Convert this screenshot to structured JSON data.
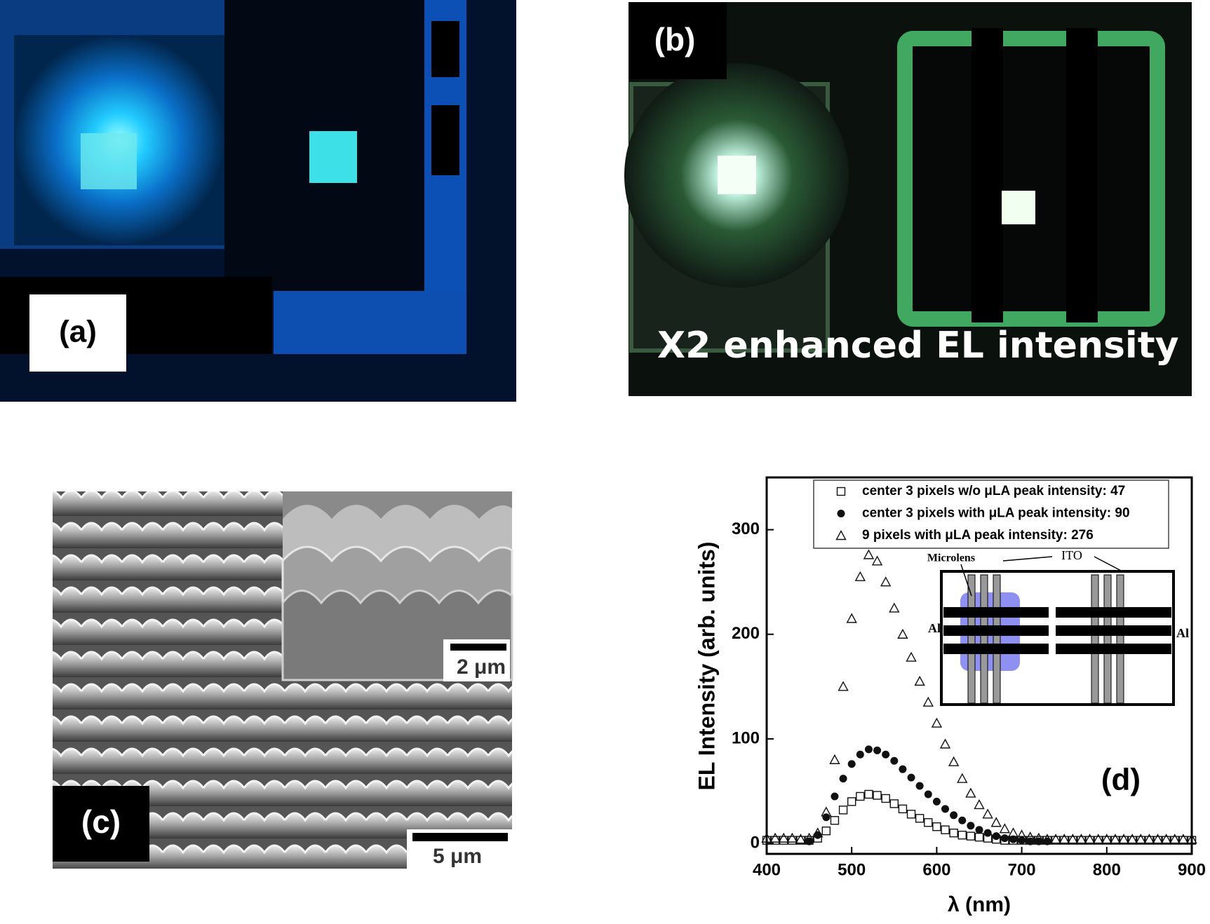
{
  "panels": {
    "a": {
      "label": "(a)"
    },
    "b": {
      "label": "(b)",
      "caption": "X2 enhanced EL intensity"
    },
    "c": {
      "label": "(c)",
      "inset_scale": "2 μm",
      "main_scale": "5 μm"
    }
  },
  "chart_data": {
    "type": "scatter",
    "panel_label": "(d)",
    "x_label": "λ (nm)",
    "y_label": "EL Intensity (arb. units)",
    "x": [
      400,
      410,
      420,
      430,
      440,
      450,
      460,
      470,
      480,
      490,
      500,
      510,
      520,
      530,
      540,
      550,
      560,
      570,
      580,
      590,
      600,
      610,
      620,
      630,
      640,
      650,
      660,
      670,
      680,
      690,
      700,
      710,
      720,
      730,
      740,
      750,
      760,
      770,
      780,
      790,
      800,
      810,
      820,
      830,
      840,
      850,
      860,
      870,
      880,
      890,
      900
    ],
    "series": [
      {
        "name": "center 3 pixels w/o μLA peak intensity: 47",
        "marker": "square",
        "color": "#111111",
        "values": [
          3,
          3,
          3,
          3,
          3,
          3,
          5,
          12,
          22,
          32,
          40,
          45,
          47,
          46,
          43,
          38,
          33,
          28,
          24,
          20,
          16,
          13,
          10,
          8,
          7,
          6,
          5,
          4,
          3,
          3,
          3,
          3,
          3,
          3,
          3,
          3,
          3,
          3,
          3,
          3,
          3,
          3,
          3,
          3,
          3,
          3,
          3,
          3,
          3,
          3,
          3
        ]
      },
      {
        "name": "center 3 pixels with μLA peak intensity: 90",
        "marker": "circle",
        "color": "#111111",
        "values": [
          null,
          null,
          null,
          null,
          null,
          2,
          8,
          25,
          45,
          62,
          76,
          85,
          90,
          89,
          85,
          79,
          71,
          63,
          55,
          47,
          40,
          33,
          27,
          22,
          17,
          13,
          10,
          7,
          5,
          4,
          3,
          2,
          2,
          2,
          null,
          null,
          null,
          null,
          null,
          null,
          null,
          null,
          null,
          null,
          null,
          null,
          null,
          null,
          null,
          null,
          null
        ]
      },
      {
        "name": "9 pixels with μLA peak intensity: 276",
        "marker": "triangle",
        "color": "#111111",
        "values": [
          5,
          5,
          5,
          5,
          4,
          5,
          10,
          30,
          80,
          150,
          215,
          255,
          276,
          270,
          250,
          225,
          200,
          178,
          155,
          135,
          115,
          95,
          78,
          62,
          48,
          37,
          28,
          20,
          14,
          10,
          8,
          6,
          5,
          4,
          4,
          4,
          4,
          4,
          4,
          4,
          4,
          4,
          4,
          4,
          4,
          4,
          4,
          4,
          4,
          4,
          4
        ]
      }
    ],
    "xlim": [
      400,
      900
    ],
    "xticks": [
      400,
      500,
      600,
      700,
      800,
      900
    ],
    "ylim": [
      -10,
      350
    ],
    "yticks": [
      0,
      100,
      200,
      300
    ],
    "inset_labels": {
      "microlens": "Microlens",
      "ito": "ITO",
      "al_left": "Al",
      "al_right": "Al"
    }
  }
}
